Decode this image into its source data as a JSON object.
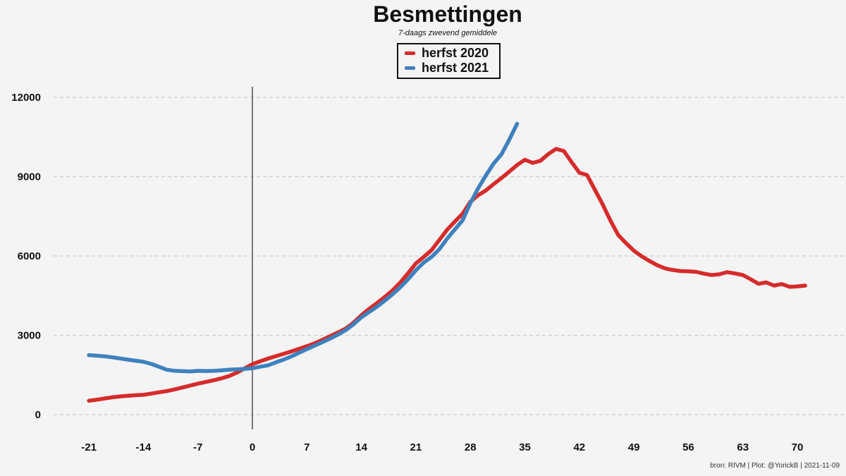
{
  "chart": {
    "title": "Besmettingen",
    "subtitle": "7-daags zwevend gemiddele",
    "caption": "bron: RIVM  | Plot: @YorickB |  2021-11-09"
  },
  "legend": {
    "items": [
      {
        "label": "herfst 2020",
        "color": "#d62b2b"
      },
      {
        "label": "herfst 2021",
        "color": "#3e81bd"
      }
    ]
  },
  "chart_data": {
    "type": "line",
    "title": "Besmettingen",
    "subtitle": "7-daags zwevend gemiddele",
    "caption": "bron: RIVM  | Plot: @YorickB |  2021-11-09",
    "xlabel": "",
    "ylabel": "",
    "xlim": [
      -25.4,
      73.3
    ],
    "ylim": [
      -560,
      12400
    ],
    "x_ticks": [
      -21,
      -14,
      -7,
      0,
      7,
      14,
      21,
      28,
      35,
      42,
      49,
      56,
      63,
      70
    ],
    "y_ticks": [
      0,
      3000,
      6000,
      9000,
      12000
    ],
    "grid": "horizontal-dashed",
    "gridline_color": "#cccccc",
    "vline_x": 0,
    "vline_color": "#777777",
    "legend_position": "top-center",
    "background_color": "#f4f4f4",
    "series": [
      {
        "name": "herfst 2020",
        "color": "#d62b2b",
        "x": [
          -21,
          -20,
          -19,
          -18,
          -17,
          -16,
          -15,
          -14,
          -13,
          -12,
          -11,
          -10,
          -9,
          -8,
          -7,
          -6,
          -5,
          -4,
          -3,
          -2,
          -1,
          0,
          1,
          2,
          3,
          4,
          5,
          6,
          7,
          8,
          9,
          10,
          11,
          12,
          13,
          14,
          15,
          16,
          17,
          18,
          19,
          20,
          21,
          22,
          23,
          24,
          25,
          26,
          27,
          28,
          29,
          30,
          31,
          32,
          33,
          34,
          35,
          36,
          37,
          38,
          39,
          40,
          41,
          42,
          43,
          44,
          45,
          46,
          47,
          48,
          49,
          50,
          51,
          52,
          53,
          54,
          55,
          56,
          57,
          58,
          59,
          60,
          61,
          62,
          63,
          64,
          65,
          66,
          67,
          68,
          69,
          70,
          71
        ],
        "values": [
          525,
          565,
          610,
          655,
          690,
          715,
          735,
          750,
          795,
          845,
          890,
          955,
          1025,
          1100,
          1170,
          1235,
          1300,
          1370,
          1460,
          1590,
          1750,
          1910,
          2020,
          2120,
          2210,
          2300,
          2390,
          2490,
          2590,
          2700,
          2830,
          2970,
          3110,
          3260,
          3480,
          3760,
          4000,
          4220,
          4450,
          4700,
          5000,
          5350,
          5720,
          5960,
          6220,
          6600,
          6990,
          7300,
          7600,
          8050,
          8300,
          8480,
          8720,
          8950,
          9190,
          9440,
          9640,
          9520,
          9600,
          9850,
          10050,
          9970,
          9550,
          9150,
          9060,
          8500,
          7950,
          7330,
          6790,
          6480,
          6200,
          5990,
          5810,
          5650,
          5530,
          5470,
          5430,
          5420,
          5400,
          5330,
          5280,
          5310,
          5390,
          5340,
          5280,
          5120,
          4950,
          5000,
          4880,
          4940,
          4835,
          4850,
          4880
        ]
      },
      {
        "name": "herfst 2021",
        "color": "#3e81bd",
        "x": [
          -21,
          -20,
          -19,
          -18,
          -17,
          -16,
          -15,
          -14,
          -13,
          -12,
          -11,
          -10,
          -9,
          -8,
          -7,
          -6,
          -5,
          -4,
          -3,
          -2,
          -1,
          0,
          1,
          2,
          3,
          4,
          5,
          6,
          7,
          8,
          9,
          10,
          11,
          12,
          13,
          14,
          15,
          16,
          17,
          18,
          19,
          20,
          21,
          22,
          23,
          24,
          25,
          26,
          27,
          28,
          29,
          30,
          31,
          32,
          33,
          34
        ],
        "values": [
          2250,
          2230,
          2205,
          2170,
          2125,
          2080,
          2040,
          2000,
          1920,
          1810,
          1700,
          1660,
          1645,
          1635,
          1655,
          1650,
          1655,
          1675,
          1700,
          1715,
          1730,
          1755,
          1810,
          1865,
          1975,
          2080,
          2200,
          2340,
          2480,
          2610,
          2745,
          2880,
          3030,
          3200,
          3420,
          3680,
          3880,
          4080,
          4310,
          4550,
          4820,
          5120,
          5460,
          5750,
          5960,
          6250,
          6650,
          7000,
          7350,
          8000,
          8560,
          9050,
          9500,
          9850,
          10400,
          11000
        ]
      }
    ]
  }
}
